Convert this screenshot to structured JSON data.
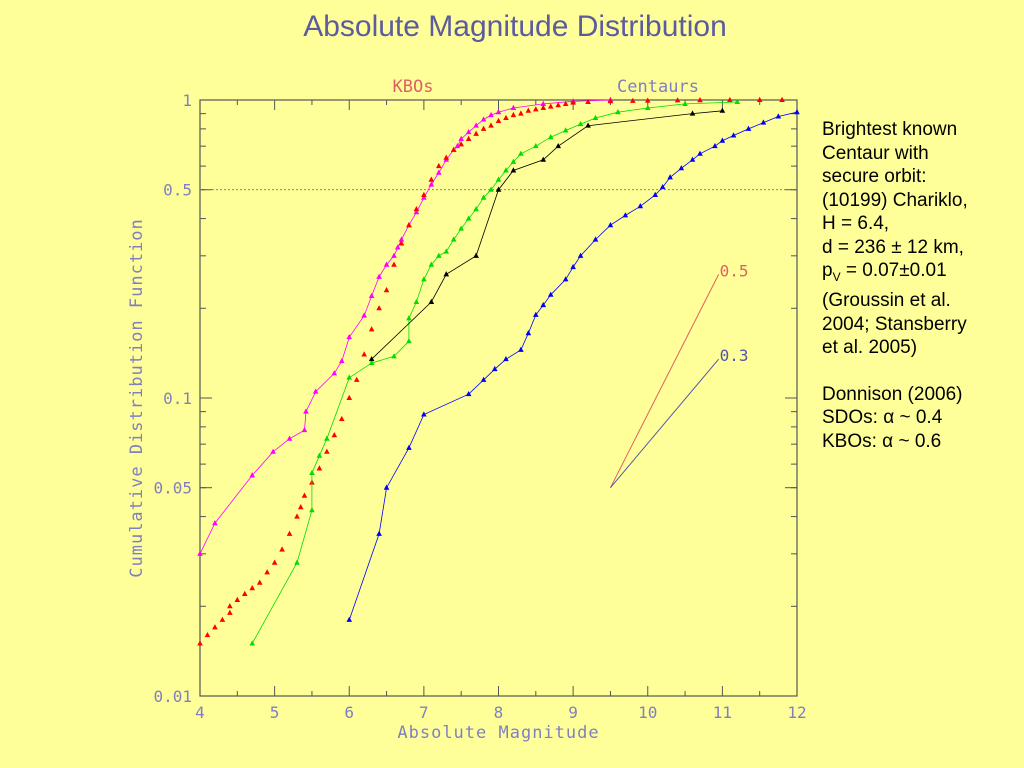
{
  "title": "Absolute Magnitude Distribution",
  "chart_data": {
    "type": "scatter",
    "title": "Absolute Magnitude Distribution",
    "xlabel": "Absolute Magnitude",
    "ylabel": "Cumulative Distribution Function",
    "xlim": [
      4,
      12
    ],
    "ylim": [
      0.01,
      1
    ],
    "yscale": "log",
    "x_ticks": [
      "4",
      "5",
      "6",
      "7",
      "8",
      "9",
      "10",
      "11",
      "12"
    ],
    "y_ticks": [
      {
        "value": 1,
        "label": "1"
      },
      {
        "value": 0.5,
        "label": "0.5"
      },
      {
        "value": 0.1,
        "label": "0.1"
      },
      {
        "value": 0.05,
        "label": "0.05"
      },
      {
        "value": 0.01,
        "label": "0.01"
      }
    ],
    "reference_line": {
      "y": 0.5,
      "style": "dotted"
    },
    "group_labels": [
      {
        "text": "KBOs",
        "color": "#e06060"
      },
      {
        "text": "Centaurs",
        "color": "#8080c0"
      }
    ],
    "series": [
      {
        "color": "#ff00ff",
        "marker": "triangle",
        "connected": true,
        "x": [
          4.0,
          4.2,
          4.7,
          4.98,
          5.2,
          5.4,
          5.42,
          5.55,
          5.8,
          5.9,
          6.0,
          6.2,
          6.3,
          6.4,
          6.5,
          6.6,
          6.65,
          6.7,
          6.8,
          6.9,
          7.0,
          7.1,
          7.2,
          7.3,
          7.4,
          7.45,
          7.5,
          7.6,
          7.7,
          7.8,
          7.9,
          8.0,
          8.2,
          8.6,
          9.0,
          9.5
        ],
        "y": [
          0.03,
          0.038,
          0.055,
          0.066,
          0.073,
          0.078,
          0.09,
          0.105,
          0.121,
          0.133,
          0.16,
          0.189,
          0.22,
          0.255,
          0.28,
          0.3,
          0.32,
          0.34,
          0.38,
          0.42,
          0.47,
          0.52,
          0.57,
          0.63,
          0.68,
          0.7,
          0.74,
          0.78,
          0.82,
          0.86,
          0.89,
          0.91,
          0.94,
          0.97,
          0.99,
          1.0
        ]
      },
      {
        "color": "#ff0000",
        "marker": "triangle",
        "connected": false,
        "x": [
          4.0,
          4.1,
          4.2,
          4.3,
          4.4,
          4.4,
          4.5,
          4.6,
          4.7,
          4.8,
          4.9,
          5.0,
          5.1,
          5.2,
          5.3,
          5.35,
          5.4,
          5.5,
          5.6,
          5.7,
          5.8,
          5.9,
          6.0,
          6.1,
          6.2,
          6.3,
          6.4,
          6.5,
          6.6,
          6.7,
          6.8,
          6.9,
          7.0,
          7.1,
          7.2,
          7.3,
          7.4,
          7.5,
          7.6,
          7.7,
          7.8,
          7.9,
          8.0,
          8.1,
          8.2,
          8.3,
          8.4,
          8.5,
          8.6,
          8.7,
          8.8,
          8.9,
          9.0,
          9.2,
          9.5,
          9.8,
          10.0,
          10.4,
          10.7,
          11.1,
          11.5,
          11.8
        ],
        "y": [
          0.015,
          0.016,
          0.017,
          0.018,
          0.019,
          0.02,
          0.021,
          0.022,
          0.023,
          0.024,
          0.026,
          0.028,
          0.031,
          0.035,
          0.04,
          0.043,
          0.047,
          0.052,
          0.058,
          0.066,
          0.075,
          0.085,
          0.1,
          0.115,
          0.14,
          0.17,
          0.2,
          0.23,
          0.28,
          0.33,
          0.38,
          0.43,
          0.48,
          0.54,
          0.6,
          0.64,
          0.68,
          0.71,
          0.74,
          0.77,
          0.8,
          0.82,
          0.85,
          0.87,
          0.89,
          0.9,
          0.92,
          0.93,
          0.94,
          0.95,
          0.96,
          0.97,
          0.98,
          0.985,
          0.99,
          0.993,
          0.995,
          0.997,
          0.998,
          0.999,
          1.0,
          1.0
        ]
      },
      {
        "color": "#00dd00",
        "marker": "triangle",
        "connected": true,
        "x": [
          4.7,
          5.3,
          5.5,
          5.5,
          5.6,
          5.7,
          6.0,
          6.3,
          6.6,
          6.8,
          6.8,
          6.9,
          7.0,
          7.1,
          7.2,
          7.3,
          7.4,
          7.5,
          7.6,
          7.7,
          7.8,
          7.9,
          8.0,
          8.1,
          8.2,
          8.3,
          8.5,
          8.7,
          8.9,
          9.1,
          9.3,
          9.6,
          10.0,
          10.5,
          11.2
        ],
        "y": [
          0.015,
          0.028,
          0.042,
          0.056,
          0.064,
          0.073,
          0.117,
          0.131,
          0.138,
          0.155,
          0.185,
          0.21,
          0.25,
          0.28,
          0.3,
          0.31,
          0.34,
          0.37,
          0.4,
          0.43,
          0.47,
          0.5,
          0.54,
          0.58,
          0.62,
          0.66,
          0.7,
          0.75,
          0.79,
          0.83,
          0.87,
          0.91,
          0.94,
          0.97,
          0.985
        ]
      },
      {
        "color": "#000000",
        "marker": "triangle",
        "connected": true,
        "x": [
          6.3,
          7.1,
          7.3,
          7.7,
          8.0,
          8.2,
          8.6,
          8.8,
          9.2,
          10.6,
          11.0
        ],
        "y": [
          0.135,
          0.21,
          0.26,
          0.3,
          0.5,
          0.58,
          0.63,
          0.7,
          0.82,
          0.9,
          0.92
        ]
      },
      {
        "color": "#0000ff",
        "marker": "triangle",
        "connected": true,
        "x": [
          6.0,
          6.4,
          6.5,
          6.8,
          7.0,
          7.6,
          7.8,
          7.95,
          8.1,
          8.3,
          8.4,
          8.5,
          8.6,
          8.7,
          8.9,
          9.0,
          9.1,
          9.3,
          9.5,
          9.7,
          9.9,
          10.1,
          10.2,
          10.3,
          10.45,
          10.6,
          10.7,
          10.9,
          11.0,
          11.15,
          11.35,
          11.55,
          11.75,
          12.0
        ],
        "y": [
          0.018,
          0.035,
          0.05,
          0.068,
          0.088,
          0.103,
          0.115,
          0.125,
          0.135,
          0.145,
          0.165,
          0.19,
          0.205,
          0.222,
          0.25,
          0.275,
          0.3,
          0.34,
          0.38,
          0.41,
          0.44,
          0.48,
          0.51,
          0.55,
          0.59,
          0.63,
          0.66,
          0.7,
          0.73,
          0.76,
          0.8,
          0.84,
          0.88,
          0.91
        ]
      }
    ],
    "slope_lines": [
      {
        "label": "0.5",
        "color": "#e06060",
        "x": [
          9.5,
          10.95
        ],
        "y": [
          0.05,
          0.26
        ]
      },
      {
        "label": "0.3",
        "color": "#5555aa",
        "x": [
          9.5,
          10.95
        ],
        "y": [
          0.05,
          0.135
        ]
      }
    ]
  },
  "side_note": {
    "lines": [
      "Brightest known",
      "Centaur with",
      "secure orbit:",
      "(10199) Chariklo,",
      "H = 6.4,",
      "d = 236 ± 12 km,"
    ],
    "albedo_prefix": "p",
    "albedo_sub": "V",
    "albedo_value": " = 0.07±0.01",
    "lines2": [
      "(Groussin et al.",
      "2004; Stansberry",
      "et al. 2005)"
    ],
    "lines3": [
      "Donnison (2006)",
      "SDOs:  α ~ 0.4",
      "KBOs:  α ~ 0.6"
    ]
  }
}
